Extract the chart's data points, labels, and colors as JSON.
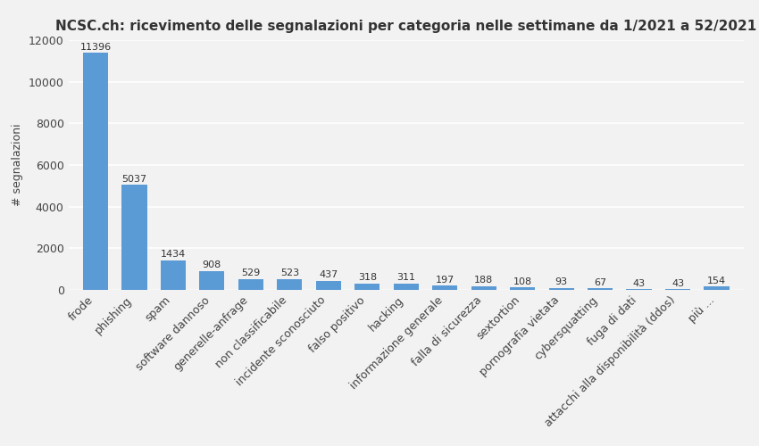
{
  "title": "NCSC.ch: ricevimento delle segnalazioni per categoria nelle settimane da 1/2021 a 52/2021",
  "ylabel": "# segnalazioni",
  "categories": [
    "frode",
    "phishing",
    "spam",
    "software dannoso",
    "generelle-anfrage",
    "non classificabile",
    "incidente sconosciuto",
    "falso positivo",
    "hacking",
    "informazione generale",
    "falla di sicurezza",
    "sextortion",
    "pornografia vietata",
    "cybersquatting",
    "fuga di dati",
    "attacchi alla disponibilità (ddos)",
    "più ..."
  ],
  "values": [
    11396,
    5037,
    1434,
    908,
    529,
    523,
    437,
    318,
    311,
    197,
    188,
    108,
    93,
    67,
    43,
    43,
    154
  ],
  "bar_color": "#5b9bd5",
  "background_color": "#f2f2f2",
  "plot_background": "#f2f2f2",
  "grid_color": "#ffffff",
  "ylim": [
    0,
    12000
  ],
  "yticks": [
    0,
    2000,
    4000,
    6000,
    8000,
    10000,
    12000
  ],
  "title_fontsize": 11,
  "label_fontsize": 9,
  "tick_fontsize": 9,
  "value_fontsize": 8
}
